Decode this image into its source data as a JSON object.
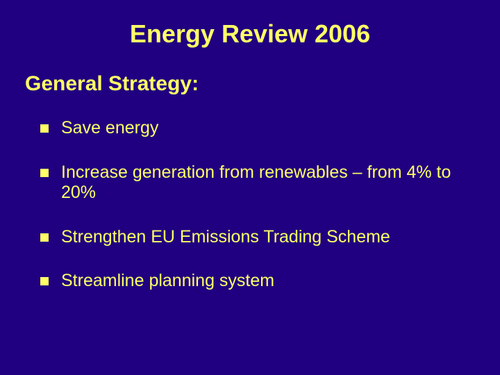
{
  "slide": {
    "background_color": "#200080",
    "text_color": "#ffff66",
    "bullet_color": "#ffff66",
    "font_family": "Verdana",
    "title": {
      "text": "Energy Review 2006",
      "fontsize": 36,
      "align": "center"
    },
    "subtitle": {
      "text": "General Strategy:",
      "fontsize": 30
    },
    "bullets": {
      "fontsize": 25,
      "marker": "square",
      "items": [
        "Save energy",
        "Increase generation from renewables – from 4% to 20%",
        "Strengthen EU Emissions Trading Scheme",
        "Streamline planning system"
      ]
    }
  }
}
